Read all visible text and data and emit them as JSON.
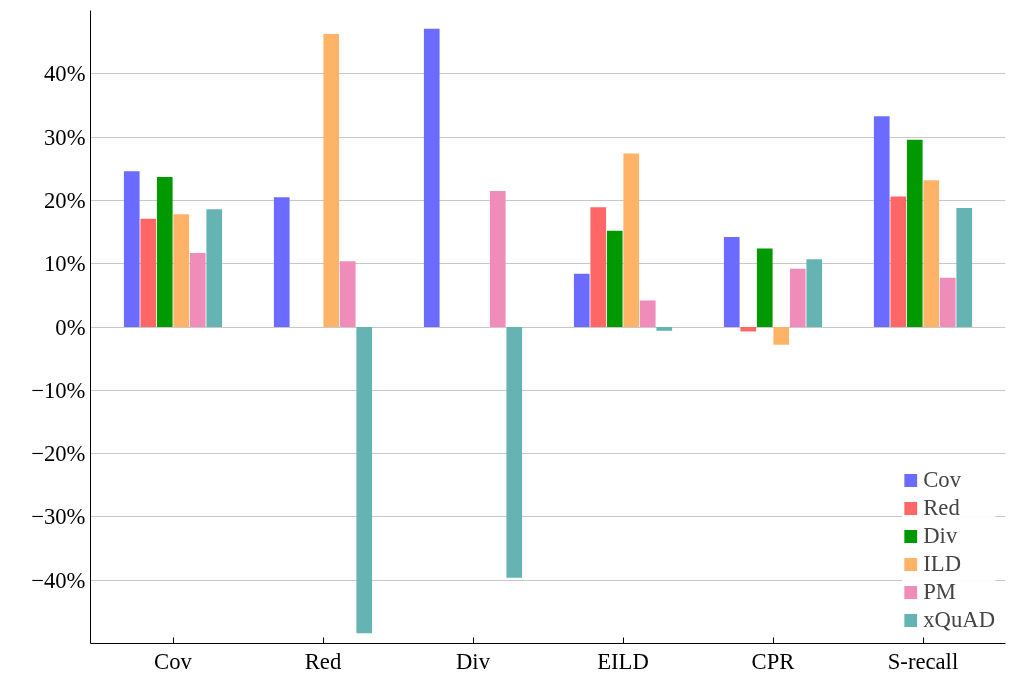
{
  "chart_data": {
    "type": "bar",
    "categories": [
      "Cov",
      "Red",
      "Div",
      "EILD",
      "CPR",
      "S-recall"
    ],
    "series": [
      {
        "name": "Cov",
        "color": "#6b6bff",
        "values": [
          24.6,
          20.5,
          47.1,
          8.4,
          14.2,
          33.3
        ]
      },
      {
        "name": "Red",
        "color": "#ff6666",
        "values": [
          17.1,
          null,
          null,
          18.9,
          -0.7,
          20.6
        ]
      },
      {
        "name": "Div",
        "color": "#009900",
        "values": [
          23.7,
          null,
          null,
          15.2,
          12.4,
          29.6
        ]
      },
      {
        "name": "ILD",
        "color": "#ffb366",
        "values": [
          17.8,
          46.3,
          null,
          27.4,
          -2.8,
          23.2
        ]
      },
      {
        "name": "PM",
        "color": "#f08cba",
        "values": [
          11.7,
          10.4,
          21.5,
          4.2,
          9.2,
          7.8
        ]
      },
      {
        "name": "xQuAD",
        "color": "#66b3b3",
        "values": [
          18.6,
          -48.4,
          -39.6,
          -0.6,
          10.7,
          18.8
        ]
      }
    ],
    "ylim": [
      -50,
      50
    ],
    "yticks": [
      {
        "value": -40,
        "label": "−40%"
      },
      {
        "value": -30,
        "label": "−30%"
      },
      {
        "value": -20,
        "label": "−20%"
      },
      {
        "value": -10,
        "label": "−10%"
      },
      {
        "value": 0,
        "label": "0%"
      },
      {
        "value": 10,
        "label": "10%"
      },
      {
        "value": 20,
        "label": "20%"
      },
      {
        "value": 30,
        "label": "30%"
      },
      {
        "value": 40,
        "label": "40%"
      }
    ],
    "grid": "y",
    "legend": "bottom right"
  }
}
